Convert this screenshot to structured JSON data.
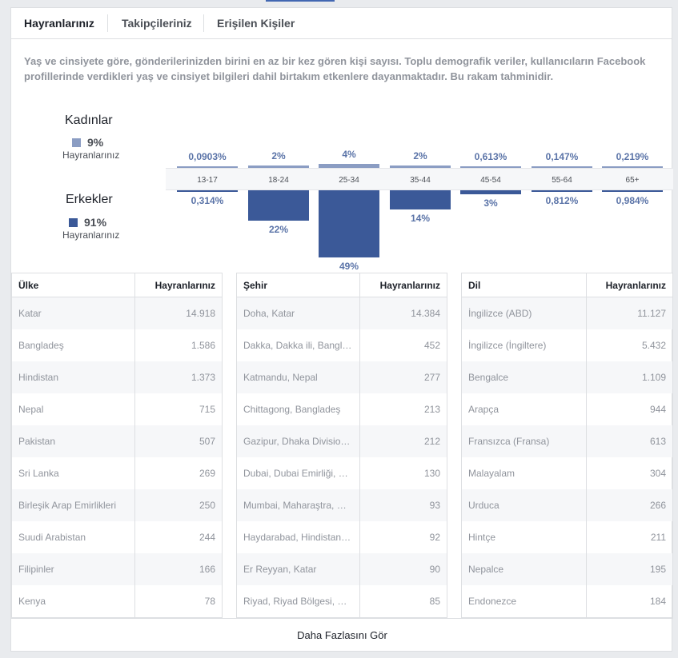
{
  "tabs": [
    "Hayranlarınız",
    "Takipçileriniz",
    "Erişilen Kişiler"
  ],
  "description": "Yaş ve cinsiyete göre, gönderilerinizden birini en az bir kez gören kişi sayısı. Toplu demografik veriler, kullanıcıların Facebook profillerinde verdikleri yaş ve cinsiyet bilgileri dahil birtakım etkenlere dayanmaktadır. Bu rakam tahminidir.",
  "women": {
    "title": "Kadınlar",
    "percent": "9%",
    "sublabel": "Hayranlarınız",
    "color": "#8b9dc3"
  },
  "men": {
    "title": "Erkekler",
    "percent": "91%",
    "sublabel": "Hayranlarınız",
    "color": "#3b5998"
  },
  "chart_data": {
    "type": "bar",
    "categories": [
      "13-17",
      "18-24",
      "25-34",
      "35-44",
      "45-54",
      "55-64",
      "65+"
    ],
    "series": [
      {
        "name": "Kadınlar",
        "values": [
          0.0903,
          2,
          4,
          2,
          0.613,
          0.147,
          0.219
        ],
        "labels": [
          "0,0903%",
          "2%",
          "4%",
          "2%",
          "0,613%",
          "0,147%",
          "0,219%"
        ]
      },
      {
        "name": "Erkekler",
        "values": [
          0.314,
          22,
          49,
          14,
          3,
          0.812,
          0.984
        ],
        "labels": [
          "0,314%",
          "22%",
          "49%",
          "14%",
          "3%",
          "0,812%",
          "0,984%"
        ]
      }
    ]
  },
  "tables": [
    {
      "header": [
        "Ülke",
        "Hayranlarınız"
      ],
      "rows": [
        [
          "Katar",
          "14.918"
        ],
        [
          "Bangladeş",
          "1.586"
        ],
        [
          "Hindistan",
          "1.373"
        ],
        [
          "Nepal",
          "715"
        ],
        [
          "Pakistan",
          "507"
        ],
        [
          "Sri Lanka",
          "269"
        ],
        [
          "Birleşik Arap Emirlikleri",
          "250"
        ],
        [
          "Suudi Arabistan",
          "244"
        ],
        [
          "Filipinler",
          "166"
        ],
        [
          "Kenya",
          "78"
        ]
      ]
    },
    {
      "header": [
        "Şehir",
        "Hayranlarınız"
      ],
      "rows": [
        [
          "Doha, Katar",
          "14.384"
        ],
        [
          "Dakka, Dakka ili, Bangl…",
          "452"
        ],
        [
          "Katmandu, Nepal",
          "277"
        ],
        [
          "Chittagong, Bangladeş",
          "213"
        ],
        [
          "Gazipur, Dhaka Divisio…",
          "212"
        ],
        [
          "Dubai, Dubai Emirliği, …",
          "130"
        ],
        [
          "Mumbai, Maharaştra, …",
          "93"
        ],
        [
          "Haydarabad, Hindistan…",
          "92"
        ],
        [
          "Er Reyyan, Katar",
          "90"
        ],
        [
          "Riyad, Riyad Bölgesi, …",
          "85"
        ]
      ]
    },
    {
      "header": [
        "Dil",
        "Hayranlarınız"
      ],
      "rows": [
        [
          "İngilizce (ABD)",
          "11.127"
        ],
        [
          "İngilizce (İngiltere)",
          "5.432"
        ],
        [
          "Bengalce",
          "1.109"
        ],
        [
          "Arapça",
          "944"
        ],
        [
          "Fransızca (Fransa)",
          "613"
        ],
        [
          "Malayalam",
          "304"
        ],
        [
          "Urduca",
          "266"
        ],
        [
          "Hintçe",
          "211"
        ],
        [
          "Nepalce",
          "195"
        ],
        [
          "Endonezce",
          "184"
        ]
      ]
    }
  ],
  "see_more": "Daha Fazlasını Gör"
}
